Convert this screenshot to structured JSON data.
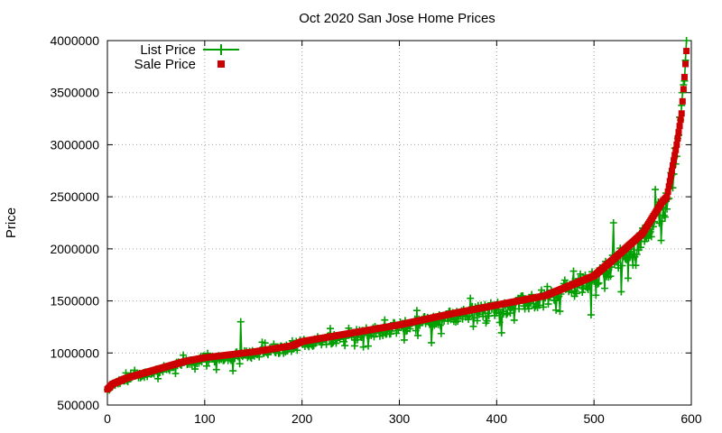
{
  "chart_data": {
    "type": "line",
    "title": "Oct 2020 San Jose Home Prices",
    "xlabel": "",
    "ylabel": "Price",
    "xlim": [
      0,
      600
    ],
    "ylim": [
      500000,
      4000000
    ],
    "xticks": [
      "0",
      "100",
      "200",
      "300",
      "400",
      "500",
      "600"
    ],
    "yticks": [
      "500000",
      "1000000",
      "1500000",
      "2000000",
      "2500000",
      "3000000",
      "3500000",
      "4000000"
    ],
    "grid": true,
    "legend_position": "top-left",
    "sale_curve_knots": [
      [
        0,
        650000
      ],
      [
        5,
        700000
      ],
      [
        20,
        760000
      ],
      [
        50,
        840000
      ],
      [
        80,
        920000
      ],
      [
        100,
        955000
      ],
      [
        150,
        1010000
      ],
      [
        190,
        1070000
      ],
      [
        200,
        1110000
      ],
      [
        250,
        1190000
      ],
      [
        300,
        1270000
      ],
      [
        350,
        1370000
      ],
      [
        400,
        1460000
      ],
      [
        450,
        1550000
      ],
      [
        500,
        1740000
      ],
      [
        520,
        1900000
      ],
      [
        550,
        2150000
      ],
      [
        570,
        2450000
      ],
      [
        575,
        2500000
      ],
      [
        580,
        2750000
      ],
      [
        585,
        3000000
      ],
      [
        590,
        3300000
      ],
      [
        593,
        3650000
      ],
      [
        595,
        3900000
      ]
    ],
    "series": [
      {
        "name": "List Price",
        "style": "line-with-plus-markers",
        "color": "#009e00",
        "n_points": 596,
        "trend": "scatters around and mostly below Sale Price; notable outliers ~1300000 near x=137 and ~1700000 near x=470"
      },
      {
        "name": "Sale Price",
        "style": "square-markers",
        "color": "#cc0000",
        "n_points": 596,
        "trend": "monotonically increasing sorted sale prices from ~650000 to ~3900000"
      }
    ]
  }
}
